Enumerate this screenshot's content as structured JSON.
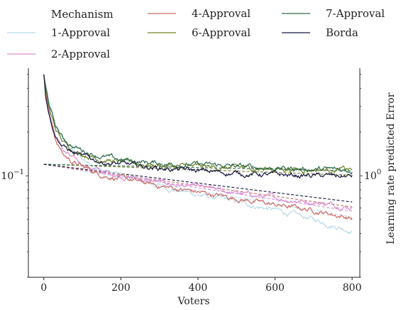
{
  "chart_data": {
    "type": "line",
    "xlabel": "Voters",
    "y2label": "Learning rate predicted Error",
    "legend": {
      "title": "Mechanism",
      "placement": "top"
    },
    "xlim": [
      -40,
      820
    ],
    "x_ticks": [
      0,
      200,
      400,
      600,
      800
    ],
    "left_y_log": true,
    "left_ylim": [
      0.02,
      0.55
    ],
    "left_y_ticks": [
      {
        "value": 0.1,
        "label": "10^-1"
      }
    ],
    "right_y_log": true,
    "right_ylim": [
      0.2,
      5.5
    ],
    "right_y_ticks": [
      {
        "value": 1,
        "label": "10^0"
      }
    ],
    "grid": false,
    "series": [
      {
        "name": "1-Approval",
        "color": "#b9dbe6",
        "x": [
          0,
          5,
          15,
          30,
          50,
          75,
          100,
          150,
          200,
          300,
          400,
          500,
          600,
          700,
          800
        ],
        "y": [
          0.5,
          0.39,
          0.3,
          0.22,
          0.18,
          0.15,
          0.13,
          0.11,
          0.1,
          0.085,
          0.074,
          0.066,
          0.058,
          0.05,
          0.042
        ],
        "fit": [
          0.12,
          0.052
        ]
      },
      {
        "name": "2-Approval",
        "color": "#d88ed6",
        "x": [
          0,
          5,
          15,
          30,
          50,
          75,
          100,
          150,
          200,
          300,
          400,
          500,
          600,
          700,
          800
        ],
        "y": [
          0.5,
          0.38,
          0.27,
          0.19,
          0.15,
          0.13,
          0.12,
          0.107,
          0.1,
          0.09,
          0.083,
          0.076,
          0.07,
          0.066,
          0.061
        ],
        "fit": [
          0.12,
          0.057
        ]
      },
      {
        "name": "4-Approval",
        "color": "#cc6b65",
        "x": [
          0,
          5,
          15,
          30,
          50,
          75,
          100,
          150,
          200,
          300,
          400,
          500,
          600,
          700,
          800
        ],
        "y": [
          0.5,
          0.37,
          0.26,
          0.18,
          0.14,
          0.125,
          0.115,
          0.102,
          0.096,
          0.085,
          0.077,
          0.07,
          0.063,
          0.058,
          0.051
        ],
        "fit": [
          0.12,
          0.061
        ]
      },
      {
        "name": "6-Approval",
        "color": "#6f8224",
        "x": [
          0,
          5,
          15,
          30,
          50,
          75,
          100,
          150,
          200,
          300,
          400,
          500,
          600,
          700,
          800
        ],
        "y": [
          0.5,
          0.38,
          0.28,
          0.21,
          0.17,
          0.152,
          0.142,
          0.13,
          0.124,
          0.118,
          0.115,
          0.113,
          0.112,
          0.111,
          0.11
        ],
        "fit": [
          0.12,
          0.101
        ]
      },
      {
        "name": "7-Approval",
        "color": "#2e6b4a",
        "x": [
          0,
          5,
          15,
          30,
          50,
          75,
          100,
          150,
          200,
          300,
          400,
          500,
          600,
          700,
          800
        ],
        "y": [
          0.5,
          0.4,
          0.3,
          0.22,
          0.18,
          0.16,
          0.15,
          0.136,
          0.128,
          0.122,
          0.119,
          0.116,
          0.113,
          0.111,
          0.109
        ],
        "fit": [
          0.12,
          0.108
        ]
      },
      {
        "name": "Borda",
        "color": "#15173f",
        "x": [
          0,
          5,
          15,
          30,
          50,
          75,
          100,
          150,
          200,
          300,
          400,
          500,
          600,
          700,
          800
        ],
        "y": [
          0.5,
          0.36,
          0.26,
          0.19,
          0.16,
          0.145,
          0.135,
          0.125,
          0.12,
          0.113,
          0.108,
          0.104,
          0.101,
          0.1,
          0.099
        ],
        "fit": [
          0.12,
          0.066
        ]
      }
    ]
  }
}
